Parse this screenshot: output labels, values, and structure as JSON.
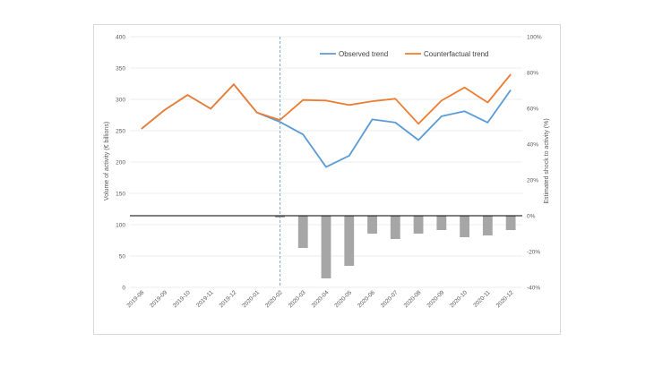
{
  "chart_data": {
    "type": "bar+line",
    "categories": [
      "2019-08",
      "2019-09",
      "2019-10",
      "2019-11",
      "2019-12",
      "2020-01",
      "2020-02",
      "2020-03",
      "2020-04",
      "2020-05",
      "2020-06",
      "2020-07",
      "2020-08",
      "2020-09",
      "2020-10",
      "2020-11",
      "2020-12"
    ],
    "series": [
      {
        "name": "Observed trend",
        "axis": "left",
        "kind": "line",
        "color": "#5b9bd5",
        "values": [
          253,
          283,
          307,
          285,
          324,
          279,
          264,
          244,
          192,
          210,
          268,
          263,
          235,
          273,
          281,
          263,
          315
        ]
      },
      {
        "name": "Counterfactual trend",
        "axis": "left",
        "kind": "line",
        "color": "#ed7d31",
        "values": [
          253,
          283,
          307,
          285,
          324,
          279,
          267,
          299,
          298,
          291,
          297,
          301,
          261,
          298,
          319,
          295,
          340
        ]
      },
      {
        "axis": "right",
        "kind": "bar",
        "color": "#a6a6a6",
        "values": [
          null,
          null,
          null,
          null,
          null,
          null,
          -1,
          -18,
          -35,
          -28,
          -10,
          -13,
          -10,
          -8,
          -12,
          -11,
          -8
        ]
      }
    ],
    "ylabel": "Volume of activity (€ billions)",
    "y2label": "Estimated shock to activity (%)",
    "ylim": [
      0,
      400
    ],
    "yticks": [
      "0",
      "50",
      "100",
      "150",
      "200",
      "250",
      "300",
      "350",
      "400"
    ],
    "y2lim": [
      -40,
      100
    ],
    "y2ticks": [
      "-40%",
      "-20%",
      "0%",
      "20%",
      "40%",
      "60%",
      "80%",
      "100%"
    ],
    "vertical_marker_category": "2020-02",
    "legend_position": "top-right",
    "grid": "horizontal"
  }
}
